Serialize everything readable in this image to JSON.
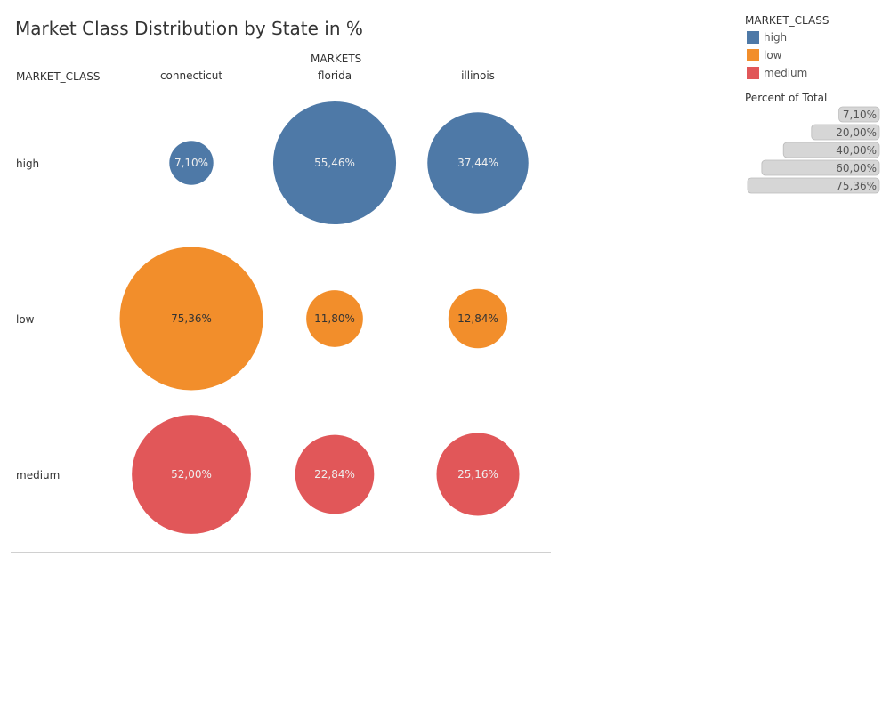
{
  "title": "Market Class Distribution by State in %",
  "header": {
    "row_dimension": "MARKET_CLASS",
    "column_dimension": "MARKETS"
  },
  "legend": {
    "title": "MARKET_CLASS",
    "items": [
      {
        "label": "high",
        "color": "#4e79a7"
      },
      {
        "label": "low",
        "color": "#f28e2b"
      },
      {
        "label": "medium",
        "color": "#e15759"
      }
    ]
  },
  "size_legend": {
    "title": "Percent of Total",
    "labels": [
      "7,10%",
      "20,00%",
      "40,00%",
      "60,00%",
      "75,36%"
    ],
    "values": [
      7.1,
      20.0,
      40.0,
      60.0,
      75.36
    ]
  },
  "chart_data": {
    "type": "bubble-matrix",
    "title": "Market Class Distribution by State in %",
    "columns": [
      "connecticut",
      "florida",
      "illinois"
    ],
    "rows": [
      "high",
      "low",
      "medium"
    ],
    "colors": {
      "high": "#4e79a7",
      "low": "#f28e2b",
      "medium": "#e15759"
    },
    "values": [
      [
        7.1,
        55.46,
        37.44
      ],
      [
        75.36,
        11.8,
        12.84
      ],
      [
        52.0,
        22.84,
        25.16
      ]
    ],
    "labels": [
      [
        "7,10%",
        "55,46%",
        "37,44%"
      ],
      [
        "75,36%",
        "11,80%",
        "12,84%"
      ],
      [
        "52,00%",
        "22,84%",
        "25,16%"
      ]
    ],
    "size_measure": "Percent of Total"
  }
}
